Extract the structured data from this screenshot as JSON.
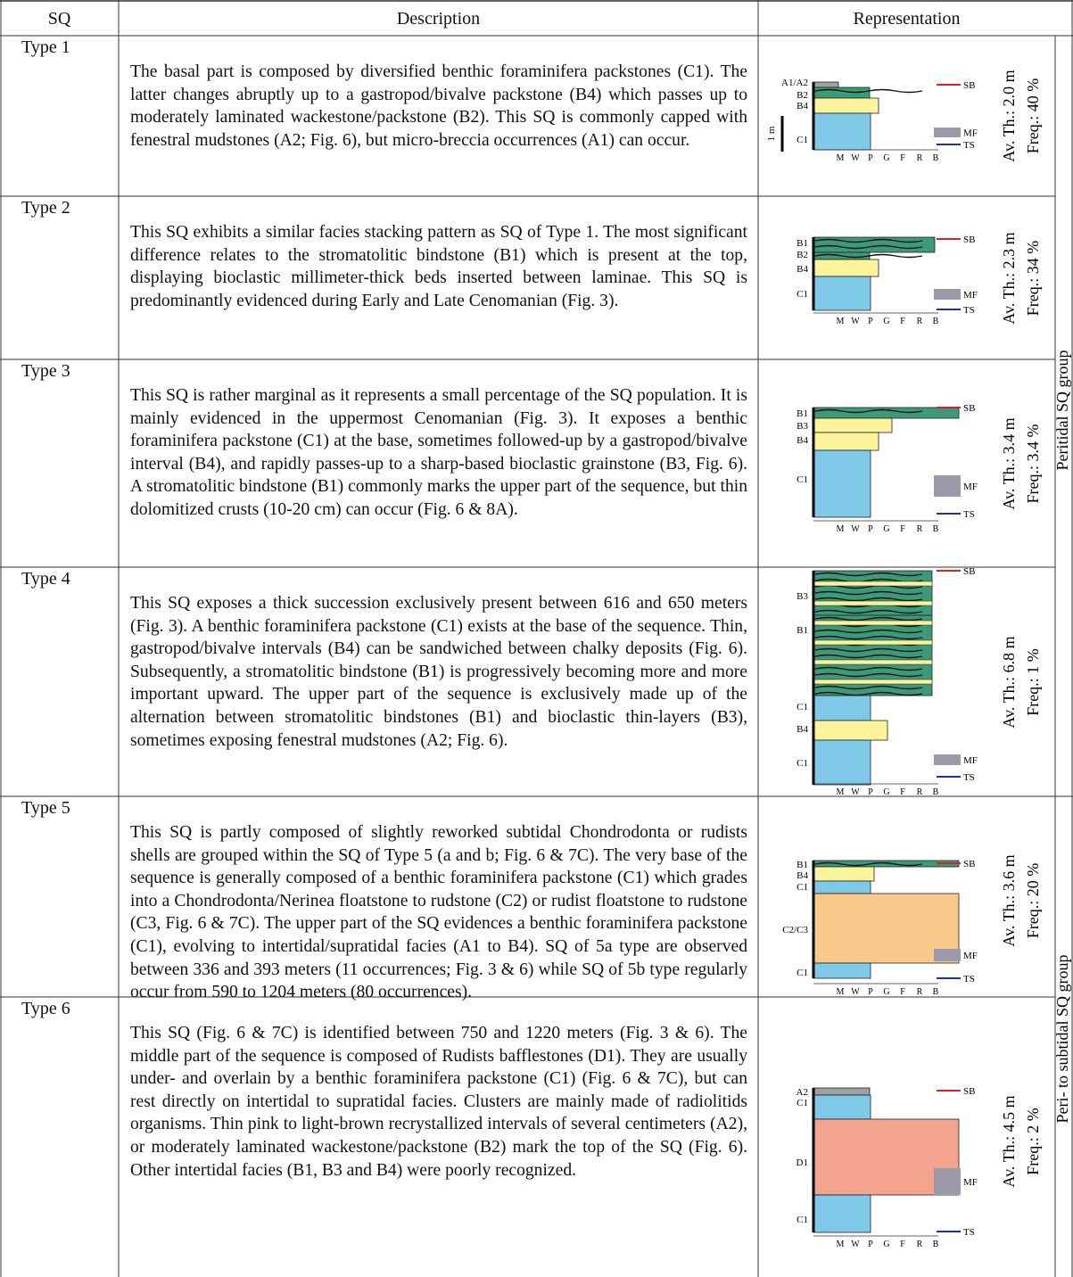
{
  "table": {
    "headers": [
      "SQ",
      "Description",
      "Representation"
    ],
    "rows": [
      {
        "sq": "Type 1",
        "description": "The basal part is composed by diversified benthic foraminifera packstones (C1). The latter changes abruptly up to a gastropod/bivalve packstone (B4) which passes up to moderately laminated wackestone/packstone (B2). This SQ is commonly capped with fenestral mudstones (A2; Fig. 6), but micro-breccia occurrences (A1) can occur.",
        "facies": [
          "A1/A2",
          "B2",
          "B4",
          "C1"
        ],
        "scale": "1 m",
        "sb": "SB",
        "mf": "MF",
        "ts": "TS",
        "axis": [
          "M",
          "W",
          "P",
          "G",
          "F",
          "R",
          "B"
        ],
        "thickness": "Av. Th.: 2.0 m",
        "frequency": "Freq.: 40 %"
      },
      {
        "sq": "Type 2",
        "description": "This SQ exhibits a similar facies stacking pattern as SQ of Type 1. The most significant difference relates to the stromatolitic bindstone (B1) which is present at the top, displaying bioclastic millimeter-thick beds inserted between laminae. This SQ is predominantly evidenced during Early and Late Cenomanian (Fig. 3).",
        "facies": [
          "B1",
          "B2",
          "B4",
          "C1"
        ],
        "sb": "SB",
        "mf": "MF",
        "ts": "TS",
        "axis": [
          "M",
          "W",
          "P",
          "G",
          "F",
          "R",
          "B"
        ],
        "thickness": "Av. Th.: 2.3 m",
        "frequency": "Freq.: 34 %"
      },
      {
        "sq": "Type 3",
        "description": "This SQ is rather marginal as it represents a small percentage of the SQ population. It is mainly evidenced in the uppermost Cenomanian (Fig. 3). It exposes a benthic foraminifera packstone (C1) at the base, sometimes followed-up by a gastropod/bivalve interval (B4), and rapidly passes-up to a sharp-based bioclastic grainstone (B3, Fig. 6). A stromatolitic bindstone (B1) commonly marks the upper part of the sequence, but thin dolomitized crusts (10-20 cm) can occur (Fig. 6 & 8A).",
        "facies": [
          "B1",
          "B3",
          "B4",
          "C1"
        ],
        "sb": "SB",
        "mf": "MF",
        "ts": "TS",
        "axis": [
          "M",
          "W",
          "P",
          "G",
          "F",
          "R",
          "B"
        ],
        "thickness": "Av. Th.: 3.4 m",
        "frequency": "Freq.: 3.4 %"
      },
      {
        "sq": "Type 4",
        "description": "This SQ exposes a thick succession exclusively present between 616 and 650 meters (Fig. 3). A benthic foraminifera packstone (C1) exists at the base of the sequence. Thin, gastropod/bivalve intervals (B4) can be sandwiched between chalky deposits (Fig. 6). Subsequently, a stromatolitic bindstone (B1) is progressively becoming more and more important upward. The upper part of the sequence is exclusively made up of the alternation between stromatolitic bindstones (B1) and bioclastic thin-layers (B3), sometimes exposing fenestral mudstones (A2; Fig. 6).",
        "facies": [
          "B3",
          "B1",
          "C1",
          "B4",
          "C1"
        ],
        "sb": "SB",
        "mf": "MF",
        "ts": "TS",
        "axis": [
          "M",
          "W",
          "P",
          "G",
          "F",
          "R",
          "B"
        ],
        "thickness": "Av. Th.: 6.8 m",
        "frequency": "Freq.: 1 %"
      },
      {
        "sq": "Type 5",
        "description": "This SQ is partly composed of slightly reworked subtidal Chondrodonta or rudists shells are grouped within the SQ of Type 5 (a and b; Fig. 6 & 7C). The very base of the sequence is generally composed of a benthic foraminifera packstone (C1) which grades into a Chondrodonta/Nerinea floatstone to rudstone (C2) or rudist floatstone to rudstone (C3, Fig. 6 & 7C). The upper part of the SQ evidences a benthic foraminifera packstone (C1), evolving to intertidal/supratidal facies (A1 to B4). SQ of 5a type are observed between 336 and 393 meters (11 occurrences; Fig. 3 & 6) while SQ of 5b type regularly occur from 590 to 1204 meters (80 occurrences).",
        "facies": [
          "B1",
          "B4",
          "C1",
          "C2/C3",
          "C1"
        ],
        "sb": "SB",
        "mf": "MF",
        "ts": "TS",
        "axis": [
          "M",
          "W",
          "P",
          "G",
          "F",
          "R",
          "B"
        ],
        "thickness": "Av. Th.: 3.6 m",
        "frequency": "Freq.: 20 %"
      },
      {
        "sq": "Type 6",
        "description": "This SQ (Fig. 6 & 7C) is identified between 750 and 1220 meters (Fig. 3 & 6). The middle part of the sequence is composed of Rudists bafflestones (D1). They are usually under- and overlain by a benthic foraminifera packstone (C1) (Fig. 6 & 7C), but can rest directly on intertidal to supratidal facies. Clusters are mainly made of radiolitids organisms. Thin pink to light-brown recrystallized intervals of several centimeters (A2), or moderately laminated wackestone/packstone (B2) mark the top of the SQ (Fig. 6). Other intertidal facies (B1, B3 and B4) were poorly recognized.",
        "facies": [
          "A2",
          "C1",
          "D1",
          "C1"
        ],
        "sb": "SB",
        "mf": "MF",
        "ts": "TS",
        "axis": [
          "M",
          "W",
          "P",
          "G",
          "F",
          "R",
          "B"
        ],
        "thickness": "Av. Th.: 4.5 m",
        "frequency": "Freq.: 2 %"
      }
    ],
    "groups": [
      "Peritidal SQ group",
      "Peri- to subtidal SQ group"
    ]
  }
}
